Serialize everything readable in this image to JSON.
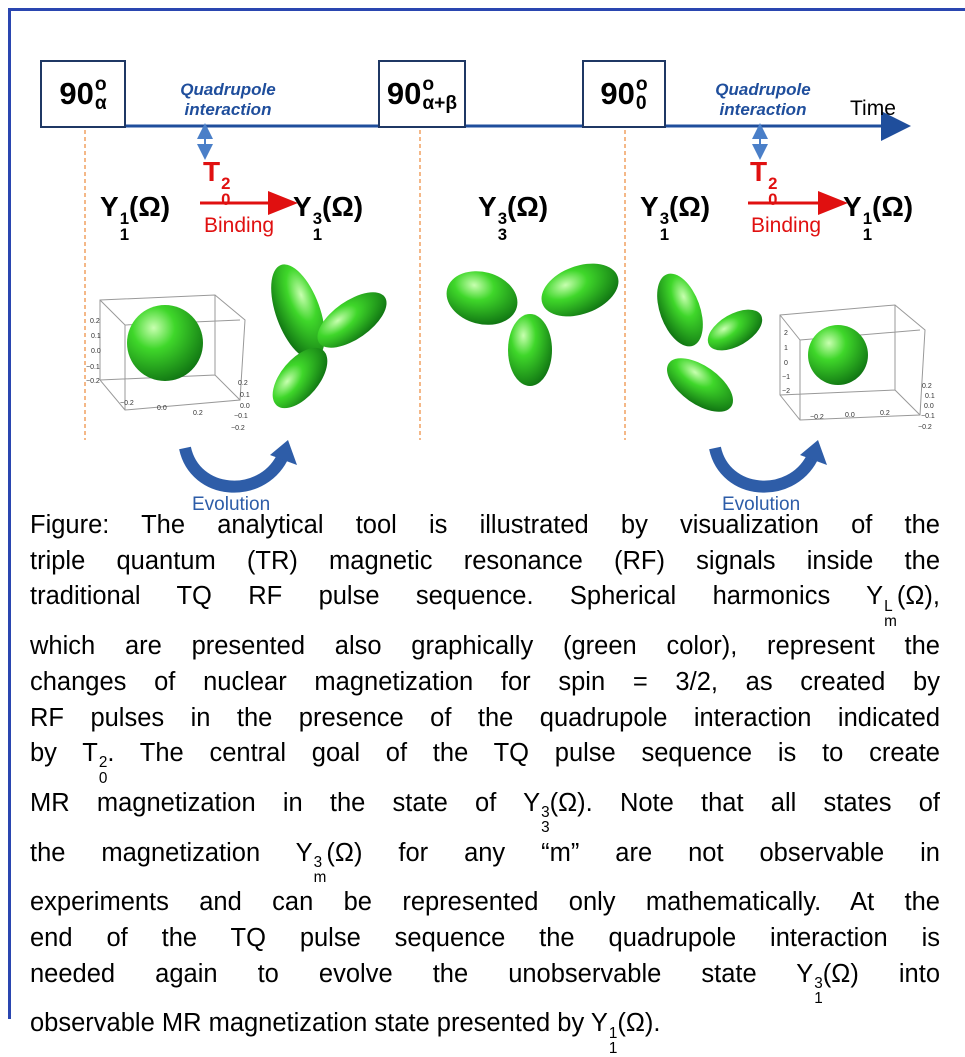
{
  "timeline": {
    "axis_label": "Time",
    "pulses": [
      {
        "runs": [
          "90",
          {
            "sup": "o"
          },
          {
            "sub": "α"
          }
        ]
      },
      {
        "runs": [
          "90",
          {
            "sup": "o"
          },
          {
            "sub": "α+β"
          }
        ]
      },
      {
        "runs": [
          "90",
          {
            "sup": "o"
          },
          {
            "sub": "0"
          }
        ]
      }
    ],
    "interactions": [
      "Quadrupole interaction",
      "Quadrupole interaction"
    ]
  },
  "states": [
    {
      "runs": [
        "Y",
        {
          "sub": "1"
        },
        {
          "sup": "1"
        },
        "(Ω)"
      ]
    },
    {
      "runs": [
        "Y",
        {
          "sub": "1"
        },
        {
          "sup": "3"
        },
        "(Ω)"
      ]
    },
    {
      "runs": [
        "Y",
        {
          "sub": "3"
        },
        {
          "sup": "3"
        },
        "(Ω)"
      ]
    },
    {
      "runs": [
        "Y",
        {
          "sub": "1"
        },
        {
          "sup": "3"
        },
        "(Ω)"
      ]
    },
    {
      "runs": [
        "Y",
        {
          "sub": "1"
        },
        {
          "sup": "1"
        },
        "(Ω)"
      ]
    }
  ],
  "operators": [
    {
      "runs": [
        "T",
        {
          "sub": "0"
        },
        {
          "sup": "2"
        }
      ],
      "label": "Binding"
    },
    {
      "runs": [
        "T",
        {
          "sub": "0"
        },
        {
          "sup": "2"
        }
      ],
      "label": "Binding"
    }
  ],
  "plots": [
    {
      "left": [
        "0.2",
        "0.1",
        "0.0",
        "−0.1",
        "−0.2"
      ],
      "bottom": [
        "−0.2",
        "0.0",
        "0.2"
      ],
      "right": [
        "0.2",
        "0.1",
        "0.0",
        "−0.1",
        "−0.2"
      ]
    },
    {
      "left": [
        "2",
        "1",
        "0",
        "−1",
        "−2"
      ],
      "bottom": [
        "−0.2",
        "0.0",
        "0.2"
      ],
      "right": [
        "0.2",
        "0.1",
        "0.0",
        "−0.1",
        "−0.2"
      ]
    }
  ],
  "evolution": [
    "Evolution",
    "Evolution"
  ],
  "caption": {
    "lines": [
      {
        "runs": [
          "Figure:  The analytical tool is illustrated by visualization of the"
        ]
      },
      {
        "runs": [
          "triple quantum (TR) magnetic resonance (RF) signals inside the"
        ]
      },
      {
        "runs": [
          "traditional TQ RF pulse sequence.  Spherical harmonics Y",
          {
            "sub": "m"
          },
          {
            "sup": "L"
          },
          "(Ω),"
        ]
      },
      {
        "runs": [
          "which are presented also graphically (green color), represent the"
        ]
      },
      {
        "runs": [
          "changes of nuclear magnetization for spin = 3/2, as created by"
        ]
      },
      {
        "runs": [
          "RF pulses in the presence of the quadrupole interaction indicated"
        ]
      },
      {
        "runs": [
          "by T",
          {
            "sub": "0"
          },
          {
            "sup": "2"
          },
          ".  The central goal of the TQ pulse sequence is to create"
        ]
      },
      {
        "runs": [
          "MR magnetization in the state of Y",
          {
            "sub": "3"
          },
          {
            "sup": "3"
          },
          "(Ω).  Note that all states of"
        ]
      },
      {
        "runs": [
          "the magnetization Y",
          {
            "sub": "m"
          },
          {
            "sup": "3"
          },
          "(Ω) for any “m” are not observable in"
        ]
      },
      {
        "runs": [
          "experiments and can be represented only mathematically.  At the"
        ]
      },
      {
        "runs": [
          "end of the TQ pulse sequence the quadrupole interaction is"
        ]
      },
      {
        "runs": [
          "needed again to evolve the unobservable state Y",
          {
            "sub": "1"
          },
          {
            "sup": "3"
          },
          "(Ω) into"
        ]
      },
      {
        "runs": [
          "observable MR magnetization state presented by Y",
          {
            "sub": "1"
          },
          {
            "sup": "1"
          },
          "(Ω)."
        ]
      }
    ]
  }
}
